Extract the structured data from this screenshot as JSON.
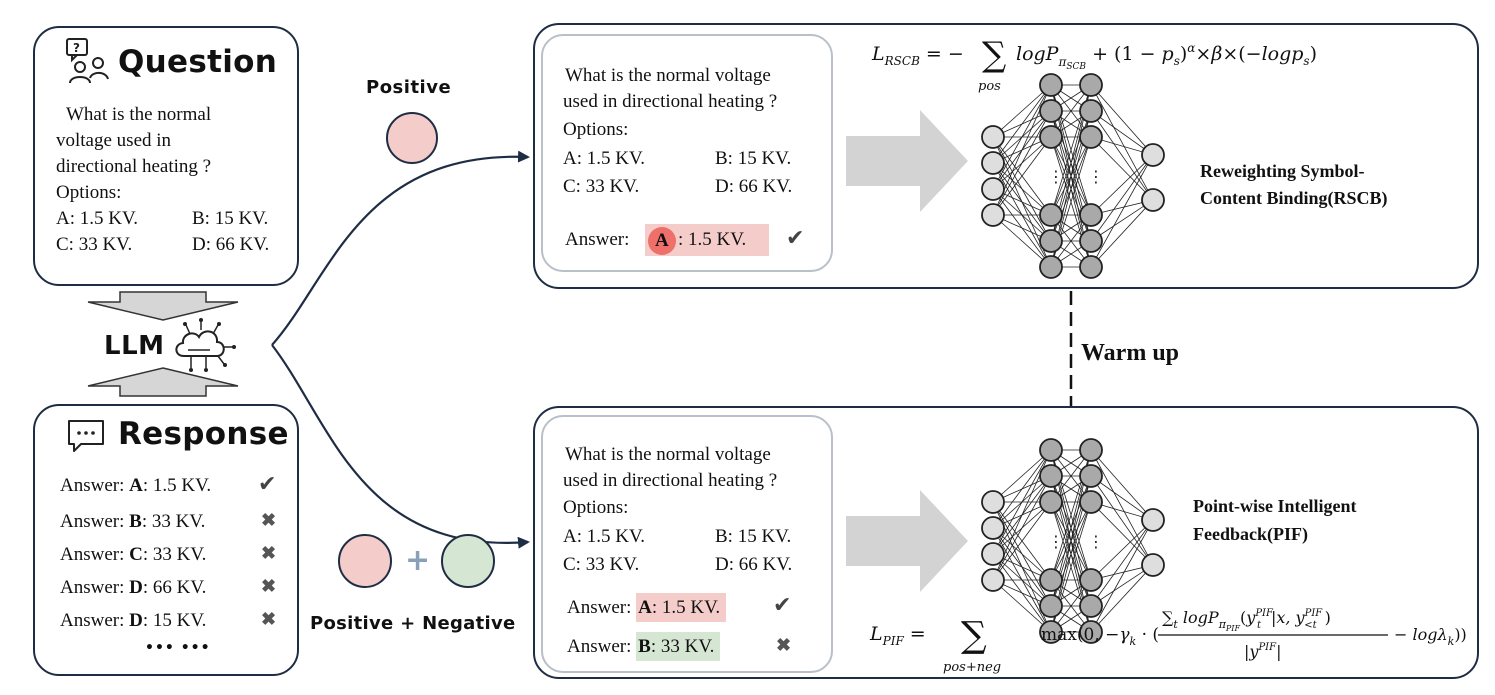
{
  "question_panel": {
    "title": "Question",
    "question_lines": [
      "What is the normal",
      "voltage used in",
      "directional heating ?"
    ],
    "options_label": "Options:",
    "options": [
      "A: 1.5 KV.",
      "B: 15 KV.",
      "C: 33 KV.",
      "D: 66 KV."
    ]
  },
  "llm_label": "LLM",
  "response_panel": {
    "title": "Response",
    "answers": [
      {
        "prefix": "Answer: ",
        "letter": "A",
        "rest": ": 1.5 KV.",
        "mark": "✔"
      },
      {
        "prefix": "Answer: ",
        "letter": "B",
        "rest": ":  33 KV.",
        "mark": "✖"
      },
      {
        "prefix": "Answer: ",
        "letter": "C",
        "rest": ":  33 KV.",
        "mark": "✖"
      },
      {
        "prefix": "Answer: ",
        "letter": "D",
        "rest": ":  66 KV.",
        "mark": "✖"
      },
      {
        "prefix": "Answer: ",
        "letter": "D",
        "rest": ":  15 KV.",
        "mark": "✖"
      }
    ],
    "ellipsis": "••• •••"
  },
  "positive_label": "Positive",
  "positive_negative_label": "Positive + Negative",
  "plus_sign": "+",
  "rscb_panel": {
    "question_lines": [
      "What is the normal voltage",
      "used in directional heating ?"
    ],
    "options_label": "Options:",
    "options": [
      "A: 1.5 KV.",
      "B: 15 KV.",
      "C: 33 KV.",
      "D: 66 KV."
    ],
    "answer_prefix": "Answer:",
    "answer_letter": "A",
    "answer_rest": " : 1.5 KV.",
    "answer_mark": "✔",
    "method_line1": "Reweighting Symbol-",
    "method_line2": "Content Binding(RSCB)"
  },
  "warm_up_label": "Warm up",
  "pif_panel": {
    "question_lines": [
      "What is the normal voltage",
      "used in directional heating ?"
    ],
    "options_label": "Options:",
    "options": [
      "A: 1.5 KV.",
      "B: 15 KV.",
      "C: 33 KV.",
      "D: 66 KV."
    ],
    "answers": [
      {
        "prefix": "Answer: ",
        "letter": "A",
        "rest": ": 1.5 KV.",
        "mark": "✔"
      },
      {
        "prefix": "Answer: ",
        "letter": "B",
        "rest": ":  33 KV.",
        "mark": "✖"
      }
    ],
    "method_line1": "Point-wise Intelligent",
    "method_line2": "Feedback(PIF)"
  },
  "neural_dots": "⋮",
  "colors": {
    "panel_border": "#1f2d44",
    "inner_border": "#b9c0c9",
    "positive": "#f4cdca",
    "negative": "#d5e6d3",
    "answer_circle": "#ef6f6a",
    "node_fill": "#a9a9a9",
    "arrow_gray": "#d0d0d0"
  }
}
